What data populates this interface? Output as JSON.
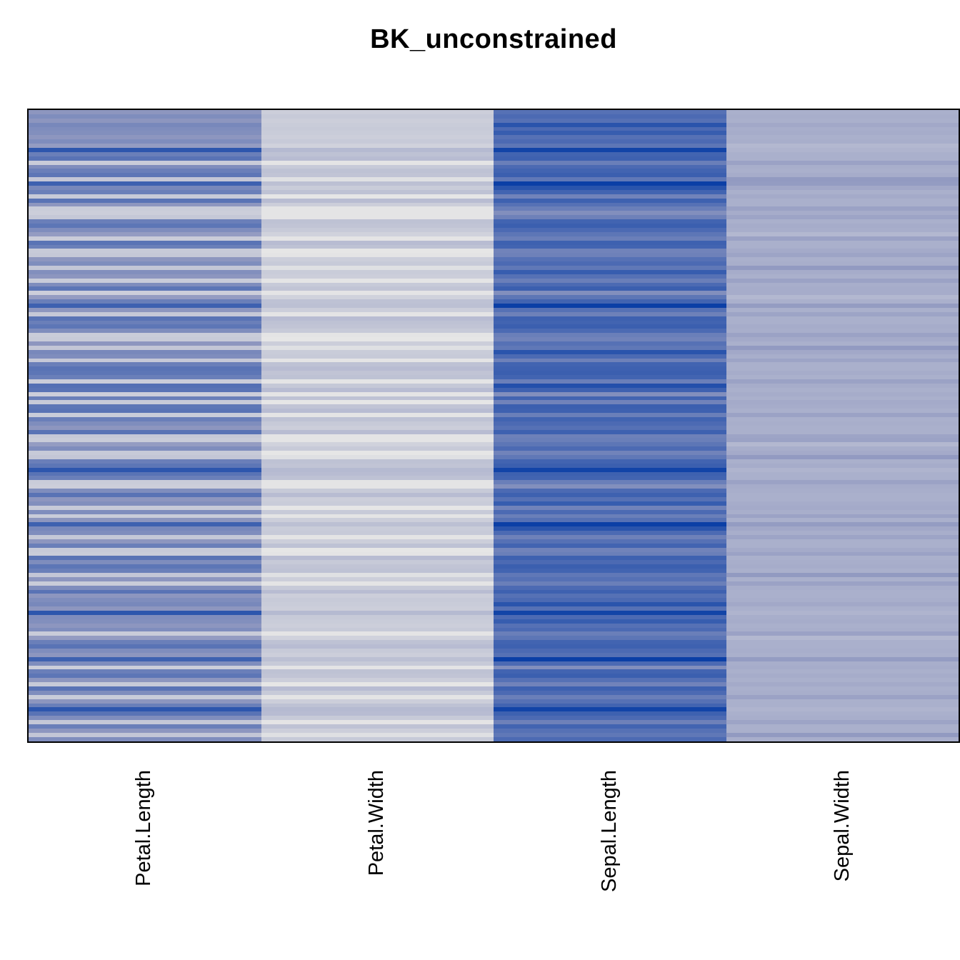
{
  "title": "BK_unconstrained",
  "chart_data": {
    "type": "heatmap",
    "title": "BK_unconstrained",
    "columns": [
      "Petal.Length",
      "Petal.Width",
      "Sepal.Length",
      "Sepal.Width"
    ],
    "n_rows": 150,
    "value_range": [
      0.1,
      7.9
    ],
    "color_scale": {
      "stops": [
        "#E6E6E6",
        "#9098C0",
        "#0B3FA6"
      ],
      "description": "low values light gray, high values royal blue"
    },
    "legend": "none",
    "row_labels": "none",
    "border_color": "#000000",
    "rows": [
      [
        4.1,
        1.3,
        5.7,
        2.8
      ],
      [
        4.5,
        1.5,
        6.0,
        2.9
      ],
      [
        4.1,
        1.3,
        5.7,
        2.8
      ],
      [
        4.7,
        1.4,
        7.0,
        3.2
      ],
      [
        4.5,
        1.5,
        6.0,
        2.9
      ],
      [
        4.4,
        1.4,
        6.6,
        3.0
      ],
      [
        4.1,
        1.3,
        5.7,
        2.8
      ],
      [
        4.5,
        1.5,
        6.0,
        2.9
      ],
      [
        3.8,
        1.1,
        5.5,
        2.4
      ],
      [
        6.9,
        2.3,
        7.7,
        2.6
      ],
      [
        5.1,
        1.9,
        6.3,
        2.8
      ],
      [
        5.6,
        2.2,
        6.4,
        2.8
      ],
      [
        1.4,
        0.2,
        5.1,
        3.5
      ],
      [
        4.5,
        1.5,
        6.0,
        2.9
      ],
      [
        5.1,
        1.9,
        6.3,
        2.8
      ],
      [
        5.5,
        1.8,
        6.5,
        3.0
      ],
      [
        1.7,
        0.4,
        5.4,
        3.9
      ],
      [
        6.4,
        2.0,
        7.9,
        3.8
      ],
      [
        4.7,
        1.4,
        7.0,
        3.2
      ],
      [
        5.1,
        1.9,
        6.3,
        2.8
      ],
      [
        1.5,
        0.1,
        4.9,
        3.1
      ],
      [
        5.6,
        2.2,
        6.4,
        2.8
      ],
      [
        4.1,
        1.3,
        5.7,
        2.8
      ],
      [
        1.4,
        0.2,
        5.1,
        3.5
      ],
      [
        1.3,
        0.2,
        4.4,
        3.0
      ],
      [
        1.6,
        0.2,
        5.0,
        3.4
      ],
      [
        5.1,
        1.9,
        6.3,
        2.8
      ],
      [
        5.5,
        1.8,
        6.5,
        3.0
      ],
      [
        4.5,
        1.5,
        6.0,
        2.9
      ],
      [
        3.8,
        1.1,
        5.5,
        2.4
      ],
      [
        1.4,
        0.2,
        5.1,
        3.5
      ],
      [
        5.6,
        2.2,
        6.4,
        2.8
      ],
      [
        5.1,
        1.9,
        6.3,
        2.8
      ],
      [
        1.5,
        0.1,
        4.9,
        3.1
      ],
      [
        1.6,
        0.2,
        5.0,
        3.4
      ],
      [
        4.1,
        1.3,
        5.7,
        2.8
      ],
      [
        4.5,
        1.5,
        6.0,
        2.9
      ],
      [
        1.7,
        0.4,
        5.4,
        3.9
      ],
      [
        4.4,
        1.4,
        6.6,
        3.0
      ],
      [
        4.1,
        1.3,
        5.7,
        2.8
      ],
      [
        1.4,
        0.2,
        5.1,
        3.5
      ],
      [
        4.5,
        1.5,
        6.0,
        2.9
      ],
      [
        5.5,
        1.8,
        6.5,
        3.0
      ],
      [
        1.3,
        0.2,
        4.4,
        3.0
      ],
      [
        3.8,
        1.1,
        5.5,
        2.4
      ],
      [
        5.1,
        1.9,
        6.3,
        2.8
      ],
      [
        6.4,
        2.0,
        7.9,
        3.8
      ],
      [
        4.1,
        1.3,
        5.7,
        2.8
      ],
      [
        1.6,
        0.2,
        5.0,
        3.4
      ],
      [
        5.6,
        2.2,
        6.4,
        2.8
      ],
      [
        5.1,
        1.9,
        6.3,
        2.8
      ],
      [
        5.5,
        1.8,
        6.5,
        3.0
      ],
      [
        4.5,
        1.5,
        6.0,
        2.9
      ],
      [
        1.4,
        0.2,
        5.1,
        3.5
      ],
      [
        1.5,
        0.1,
        4.9,
        3.1
      ],
      [
        4.1,
        1.3,
        5.7,
        2.8
      ],
      [
        1.7,
        0.4,
        5.4,
        3.9
      ],
      [
        4.7,
        1.4,
        7.0,
        3.2
      ],
      [
        4.5,
        1.5,
        6.0,
        2.9
      ],
      [
        1.6,
        0.2,
        5.0,
        3.4
      ],
      [
        5.1,
        1.9,
        6.3,
        2.8
      ],
      [
        5.6,
        2.2,
        6.4,
        2.8
      ],
      [
        5.5,
        1.8,
        6.5,
        3.0
      ],
      [
        5.1,
        1.9,
        6.3,
        2.8
      ],
      [
        1.4,
        0.2,
        5.1,
        3.5
      ],
      [
        5.8,
        1.6,
        7.2,
        3.0
      ],
      [
        5.6,
        2.2,
        6.4,
        2.8
      ],
      [
        1.3,
        0.2,
        4.4,
        3.0
      ],
      [
        5.1,
        1.9,
        6.3,
        2.8
      ],
      [
        1.5,
        0.1,
        4.9,
        3.1
      ],
      [
        5.5,
        1.8,
        6.5,
        3.0
      ],
      [
        5.6,
        2.2,
        6.4,
        2.8
      ],
      [
        1.4,
        0.2,
        5.1,
        3.5
      ],
      [
        5.1,
        1.9,
        6.3,
        2.8
      ],
      [
        4.5,
        1.5,
        6.0,
        2.9
      ],
      [
        4.1,
        1.3,
        5.7,
        2.8
      ],
      [
        5.6,
        2.2,
        6.4,
        2.8
      ],
      [
        1.6,
        0.2,
        5.0,
        3.4
      ],
      [
        1.4,
        0.2,
        5.1,
        3.5
      ],
      [
        3.8,
        1.1,
        5.5,
        2.4
      ],
      [
        4.5,
        1.5,
        6.0,
        2.9
      ],
      [
        1.5,
        0.1,
        4.9,
        3.1
      ],
      [
        1.7,
        0.4,
        5.4,
        3.9
      ],
      [
        5.1,
        1.9,
        6.3,
        2.8
      ],
      [
        5.5,
        1.8,
        6.5,
        3.0
      ],
      [
        6.9,
        2.3,
        7.7,
        2.6
      ],
      [
        5.6,
        2.2,
        6.4,
        2.8
      ],
      [
        5.1,
        1.9,
        6.3,
        2.8
      ],
      [
        1.4,
        0.2,
        5.1,
        3.5
      ],
      [
        1.3,
        0.2,
        4.4,
        3.0
      ],
      [
        4.5,
        1.5,
        6.0,
        2.9
      ],
      [
        5.6,
        2.2,
        6.4,
        2.8
      ],
      [
        4.1,
        1.3,
        5.7,
        2.8
      ],
      [
        4.4,
        1.4,
        6.6,
        3.0
      ],
      [
        1.5,
        0.1,
        4.9,
        3.1
      ],
      [
        4.5,
        1.5,
        6.0,
        2.9
      ],
      [
        1.4,
        0.2,
        5.1,
        3.5
      ],
      [
        4.1,
        1.3,
        5.7,
        2.8
      ],
      [
        6.4,
        2.0,
        7.9,
        3.8
      ],
      [
        4.7,
        1.4,
        7.0,
        3.2
      ],
      [
        4.5,
        1.5,
        6.0,
        2.9
      ],
      [
        1.6,
        0.2,
        5.0,
        3.4
      ],
      [
        4.1,
        1.3,
        5.7,
        2.8
      ],
      [
        5.1,
        1.9,
        6.3,
        2.8
      ],
      [
        1.5,
        0.1,
        4.9,
        3.1
      ],
      [
        1.4,
        0.2,
        5.1,
        3.5
      ],
      [
        5.6,
        2.2,
        6.4,
        2.8
      ],
      [
        4.5,
        1.5,
        6.0,
        2.9
      ],
      [
        5.5,
        1.8,
        6.5,
        3.0
      ],
      [
        5.1,
        1.9,
        6.3,
        2.8
      ],
      [
        1.7,
        0.4,
        5.4,
        3.9
      ],
      [
        4.1,
        1.3,
        5.7,
        2.8
      ],
      [
        1.4,
        0.2,
        5.1,
        3.5
      ],
      [
        4.5,
        1.5,
        6.0,
        2.9
      ],
      [
        5.6,
        2.2,
        6.4,
        2.8
      ],
      [
        4.1,
        1.3,
        5.7,
        2.8
      ],
      [
        4.5,
        1.5,
        6.0,
        2.9
      ],
      [
        4.7,
        1.4,
        7.0,
        3.2
      ],
      [
        4.1,
        1.3,
        5.7,
        2.8
      ],
      [
        6.9,
        2.3,
        7.7,
        2.6
      ],
      [
        4.5,
        1.5,
        6.0,
        2.9
      ],
      [
        4.4,
        1.4,
        6.6,
        3.0
      ],
      [
        4.1,
        1.3,
        5.7,
        2.8
      ],
      [
        4.5,
        1.5,
        6.0,
        2.9
      ],
      [
        1.4,
        0.2,
        5.1,
        3.5
      ],
      [
        3.8,
        1.1,
        5.5,
        2.4
      ],
      [
        5.1,
        1.9,
        6.3,
        2.8
      ],
      [
        5.6,
        2.2,
        6.4,
        2.8
      ],
      [
        4.5,
        1.5,
        6.0,
        2.9
      ],
      [
        4.1,
        1.3,
        5.7,
        2.8
      ],
      [
        6.4,
        2.0,
        7.9,
        3.8
      ],
      [
        4.5,
        1.5,
        6.0,
        2.9
      ],
      [
        1.3,
        0.2,
        4.4,
        3.0
      ],
      [
        5.1,
        1.9,
        6.3,
        2.8
      ],
      [
        5.5,
        1.8,
        6.5,
        3.0
      ],
      [
        4.1,
        1.3,
        5.7,
        2.8
      ],
      [
        1.5,
        0.1,
        4.9,
        3.1
      ],
      [
        5.6,
        2.2,
        6.4,
        2.8
      ],
      [
        4.5,
        1.5,
        6.0,
        2.9
      ],
      [
        1.4,
        0.2,
        5.1,
        3.5
      ],
      [
        4.1,
        1.3,
        5.7,
        2.8
      ],
      [
        5.1,
        1.9,
        6.3,
        2.8
      ],
      [
        6.9,
        2.3,
        7.7,
        2.6
      ],
      [
        5.6,
        2.2,
        6.4,
        2.8
      ],
      [
        4.5,
        1.5,
        6.0,
        2.9
      ],
      [
        1.6,
        0.2,
        5.0,
        3.4
      ],
      [
        5.1,
        1.9,
        6.3,
        2.8
      ],
      [
        4.1,
        1.3,
        5.7,
        2.8
      ],
      [
        1.7,
        0.4,
        5.4,
        3.9
      ],
      [
        4.5,
        1.5,
        6.0,
        2.9
      ]
    ]
  }
}
